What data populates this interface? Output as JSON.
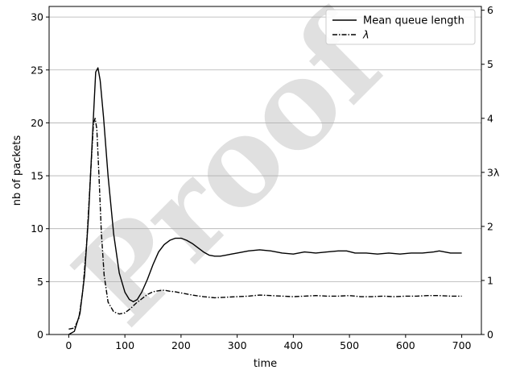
{
  "chart_data": {
    "type": "line",
    "xlabel": "time",
    "ylabel": "nb of packets",
    "xlim": [
      -35,
      735
    ],
    "ylim": [
      0,
      31
    ],
    "y2lim": [
      0,
      6.07
    ],
    "grid": "horizontal",
    "legend_position": "top-right",
    "x_ticks": [
      0,
      100,
      200,
      300,
      400,
      500,
      600,
      700
    ],
    "y_ticks": [
      0,
      5,
      10,
      15,
      20,
      25,
      30
    ],
    "y2_ticks": [
      0,
      1,
      2,
      3,
      4,
      5,
      6
    ],
    "y2_tick_labels": [
      "0",
      "1",
      "2",
      "3λ",
      "4",
      "5",
      "6"
    ],
    "watermark": "Proof",
    "series": [
      {
        "name": "Mean queue length",
        "axis": "left",
        "style": "solid",
        "x": [
          0,
          10,
          20,
          28,
          35,
          42,
          48,
          52,
          56,
          62,
          70,
          80,
          90,
          100,
          108,
          115,
          122,
          130,
          140,
          150,
          160,
          170,
          180,
          190,
          200,
          210,
          220,
          230,
          240,
          250,
          260,
          270,
          280,
          290,
          300,
          320,
          340,
          360,
          380,
          400,
          420,
          440,
          460,
          480,
          495,
          510,
          530,
          550,
          570,
          590,
          610,
          630,
          650,
          660,
          680,
          700
        ],
        "y": [
          0,
          0.3,
          2.0,
          5.5,
          11.0,
          18.5,
          24.8,
          25.2,
          24.0,
          20.5,
          15.0,
          9.5,
          5.8,
          4.0,
          3.3,
          3.1,
          3.3,
          4.0,
          5.2,
          6.6,
          7.8,
          8.5,
          8.9,
          9.1,
          9.1,
          8.9,
          8.6,
          8.2,
          7.8,
          7.5,
          7.4,
          7.4,
          7.5,
          7.6,
          7.7,
          7.9,
          8.0,
          7.9,
          7.7,
          7.6,
          7.8,
          7.7,
          7.8,
          7.9,
          7.9,
          7.7,
          7.7,
          7.6,
          7.7,
          7.6,
          7.7,
          7.7,
          7.8,
          7.9,
          7.7,
          7.7
        ]
      },
      {
        "name": "λ",
        "axis": "right",
        "style": "dashdot",
        "x": [
          0,
          10,
          18,
          25,
          32,
          38,
          44,
          47,
          50,
          54,
          58,
          63,
          70,
          80,
          90,
          100,
          110,
          120,
          130,
          140,
          150,
          160,
          170,
          180,
          190,
          200,
          220,
          240,
          260,
          280,
          300,
          320,
          340,
          360,
          380,
          400,
          420,
          440,
          460,
          480,
          500,
          520,
          540,
          560,
          580,
          600,
          620,
          640,
          660,
          680,
          700
        ],
        "y": [
          0.1,
          0.12,
          0.3,
          0.8,
          1.7,
          2.8,
          3.9,
          4.0,
          3.8,
          2.9,
          1.9,
          1.1,
          0.6,
          0.42,
          0.38,
          0.4,
          0.48,
          0.58,
          0.66,
          0.74,
          0.79,
          0.81,
          0.82,
          0.8,
          0.79,
          0.77,
          0.73,
          0.7,
          0.68,
          0.69,
          0.7,
          0.71,
          0.73,
          0.72,
          0.71,
          0.7,
          0.71,
          0.72,
          0.71,
          0.71,
          0.72,
          0.7,
          0.7,
          0.71,
          0.7,
          0.71,
          0.71,
          0.72,
          0.72,
          0.71,
          0.71
        ]
      }
    ]
  }
}
